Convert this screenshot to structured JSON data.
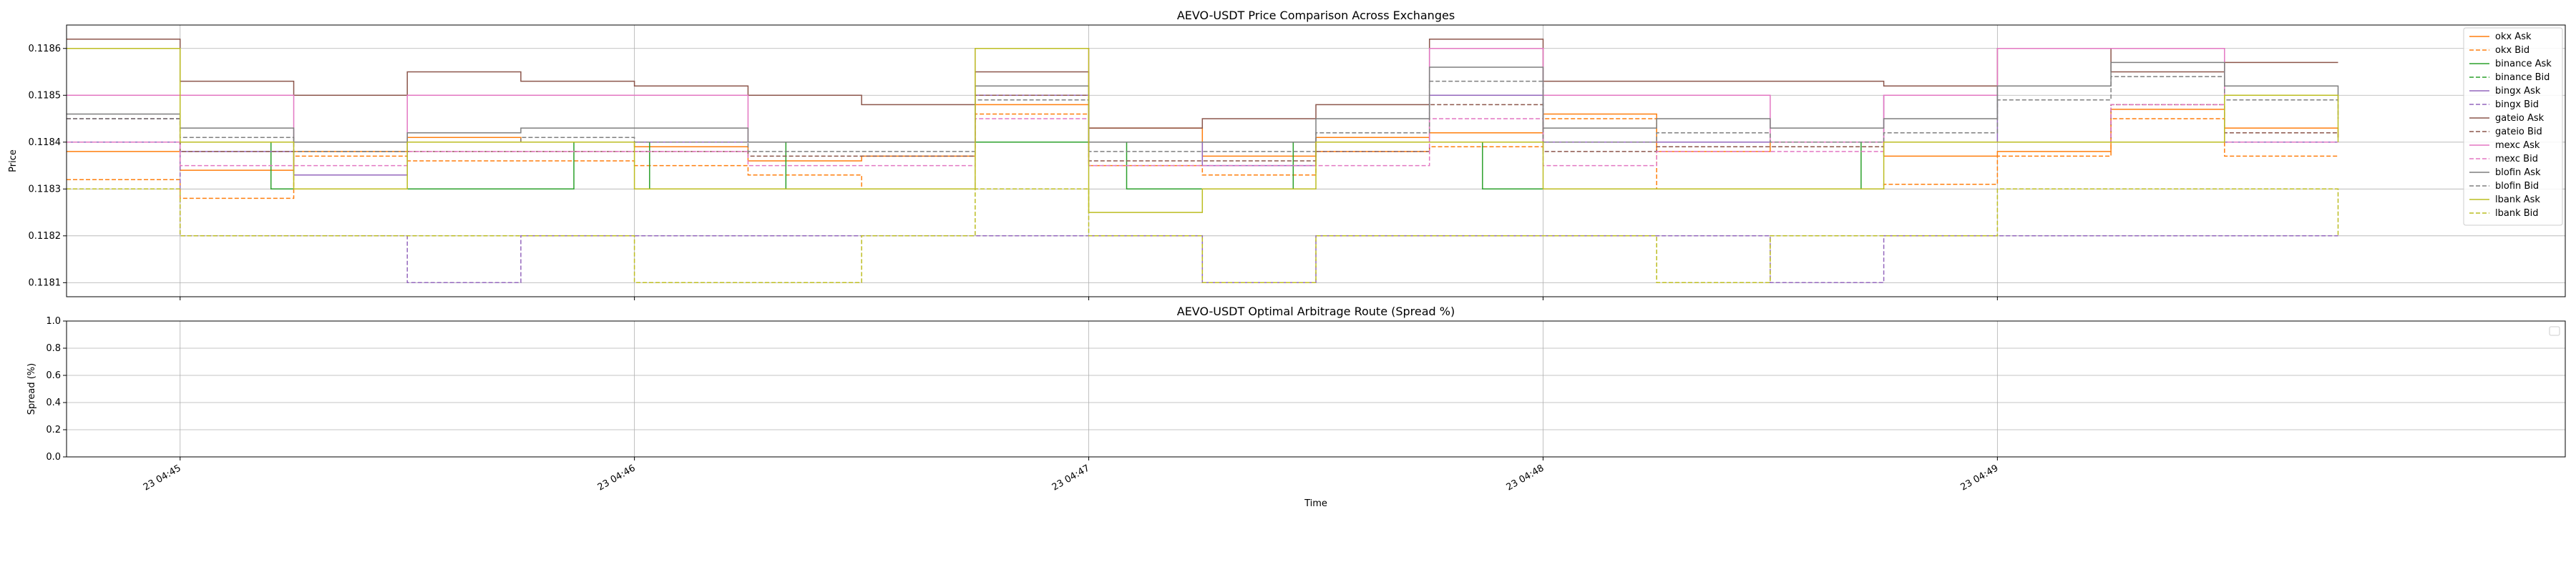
{
  "figure": {
    "x_tick_labels": [
      "23 04:45",
      "23 04:46",
      "23 04:47",
      "23 04:48",
      "23 04:49"
    ],
    "xlabel": "Time"
  },
  "chart_data": [
    {
      "type": "line",
      "title": "AEVO-USDT Price Comparison Across Exchanges",
      "xlabel": "",
      "ylabel": "Price",
      "x_range": [
        "04:44:45",
        "04:50:15"
      ],
      "ylim": [
        0.11807,
        0.11865
      ],
      "yticks": [
        0.1181,
        0.1182,
        0.1183,
        0.1184,
        0.1185,
        0.1186
      ],
      "ytick_labels": [
        "0.1181",
        "0.1182",
        "0.1183",
        "0.1184",
        "0.1185",
        "0.1186"
      ],
      "grid": true,
      "legend_position": "upper right",
      "series": [
        {
          "name": "okx Ask",
          "color": "#ff7f0e",
          "style": "solid",
          "x": [
            "04:44:45",
            "04:45:00",
            "04:45:15",
            "04:45:30",
            "04:45:45",
            "04:46:00",
            "04:46:15",
            "04:46:30",
            "04:46:45",
            "04:47:00",
            "04:47:15",
            "04:47:30",
            "04:47:45",
            "04:48:00",
            "04:48:15",
            "04:48:30",
            "04:48:45",
            "04:49:00",
            "04:49:15",
            "04:49:30",
            "04:49:45"
          ],
          "values": [
            0.11838,
            0.11834,
            0.11838,
            0.11841,
            0.1184,
            0.11839,
            0.11836,
            0.11837,
            0.11848,
            0.11843,
            0.11837,
            0.11841,
            0.11842,
            0.11846,
            0.11838,
            0.1184,
            0.11837,
            0.11838,
            0.11847,
            0.11843,
            0.11841
          ]
        },
        {
          "name": "okx Bid",
          "color": "#ff7f0e",
          "style": "dashed",
          "x": [
            "04:44:45",
            "04:45:00",
            "04:45:15",
            "04:45:30",
            "04:45:45",
            "04:46:00",
            "04:46:15",
            "04:46:30",
            "04:46:45",
            "04:47:00",
            "04:47:15",
            "04:47:30",
            "04:47:45",
            "04:48:00",
            "04:48:15",
            "04:48:30",
            "04:48:45",
            "04:49:00",
            "04:49:15",
            "04:49:30",
            "04:49:45"
          ],
          "values": [
            0.11832,
            0.11828,
            0.11837,
            0.11836,
            0.11836,
            0.11835,
            0.11833,
            0.1183,
            0.11846,
            0.11835,
            0.11833,
            0.11838,
            0.11839,
            0.11845,
            0.1183,
            0.1183,
            0.11831,
            0.11837,
            0.11845,
            0.11837,
            0.11837
          ]
        },
        {
          "name": "binance Ask",
          "color": "#2ca02c",
          "style": "solid",
          "x": [
            "04:44:45",
            "04:45:10",
            "04:45:12",
            "04:45:50",
            "04:45:52",
            "04:46:00",
            "04:46:02",
            "04:46:18",
            "04:46:20",
            "04:47:00",
            "04:47:05",
            "04:47:25",
            "04:47:27",
            "04:47:50",
            "04:47:52",
            "04:48:00",
            "04:48:02",
            "04:48:40",
            "04:48:42",
            "04:49:00",
            "04:49:02",
            "04:49:45"
          ],
          "values": [
            0.1184,
            0.1184,
            0.1183,
            0.1183,
            0.1184,
            0.1184,
            0.1183,
            0.1183,
            0.1184,
            0.1184,
            0.1183,
            0.1183,
            0.1184,
            0.1184,
            0.1183,
            0.1183,
            0.1183,
            0.1183,
            0.1184,
            0.1184,
            0.1184,
            0.1184
          ]
        },
        {
          "name": "binance Bid",
          "color": "#2ca02c",
          "style": "dashed",
          "x": [
            "04:44:45",
            "04:45:30",
            "04:46:00",
            "04:46:30",
            "04:47:00",
            "04:47:30",
            "04:48:00",
            "04:48:30",
            "04:49:00",
            "04:49:45"
          ],
          "values": [
            0.1184,
            0.1184,
            0.1184,
            0.1184,
            0.1184,
            0.1184,
            0.1184,
            0.1184,
            0.1184,
            0.1184
          ]
        },
        {
          "name": "bingx Ask",
          "color": "#9467bd",
          "style": "solid",
          "x": [
            "04:44:45",
            "04:45:00",
            "04:45:15",
            "04:45:30",
            "04:45:45",
            "04:46:00",
            "04:46:15",
            "04:46:30",
            "04:46:45",
            "04:47:00",
            "04:47:15",
            "04:47:30",
            "04:47:45",
            "04:48:00",
            "04:48:15",
            "04:48:30",
            "04:48:45",
            "04:49:00",
            "04:49:15",
            "04:49:30",
            "04:49:45"
          ],
          "values": [
            0.1184,
            0.11838,
            0.11833,
            0.1184,
            0.1184,
            0.1184,
            0.1184,
            0.1184,
            0.1185,
            0.1184,
            0.11835,
            0.1184,
            0.1185,
            0.1184,
            0.1184,
            0.1184,
            0.1185,
            0.1184,
            0.1184,
            0.1184,
            0.1184
          ]
        },
        {
          "name": "bingx Bid",
          "color": "#9467bd",
          "style": "dashed",
          "x": [
            "04:44:45",
            "04:45:00",
            "04:45:15",
            "04:45:30",
            "04:45:45",
            "04:46:00",
            "04:46:15",
            "04:46:30",
            "04:46:45",
            "04:47:00",
            "04:47:15",
            "04:47:30",
            "04:47:45",
            "04:48:00",
            "04:48:15",
            "04:48:30",
            "04:48:45",
            "04:49:00",
            "04:49:15",
            "04:49:30",
            "04:49:45"
          ],
          "values": [
            0.11845,
            0.1182,
            0.1182,
            0.1181,
            0.1182,
            0.1182,
            0.1182,
            0.1182,
            0.1182,
            0.1182,
            0.1181,
            0.1182,
            0.1182,
            0.1182,
            0.1182,
            0.1181,
            0.1182,
            0.1182,
            0.1182,
            0.1182,
            0.1182
          ]
        },
        {
          "name": "gateio Ask",
          "color": "#8c564b",
          "style": "solid",
          "x": [
            "04:44:45",
            "04:45:00",
            "04:45:15",
            "04:45:30",
            "04:45:45",
            "04:46:00",
            "04:46:15",
            "04:46:30",
            "04:46:45",
            "04:47:00",
            "04:47:15",
            "04:47:30",
            "04:47:45",
            "04:48:00",
            "04:48:15",
            "04:48:30",
            "04:48:45",
            "04:49:00",
            "04:49:15",
            "04:49:30",
            "04:49:45"
          ],
          "values": [
            0.11862,
            0.11853,
            0.1185,
            0.11855,
            0.11853,
            0.11852,
            0.1185,
            0.11848,
            0.11855,
            0.11843,
            0.11845,
            0.11848,
            0.11862,
            0.11853,
            0.11853,
            0.11853,
            0.11852,
            0.1186,
            0.11855,
            0.11857,
            0.11857
          ]
        },
        {
          "name": "gateio Bid",
          "color": "#8c564b",
          "style": "dashed",
          "x": [
            "04:44:45",
            "04:45:00",
            "04:45:15",
            "04:45:30",
            "04:45:45",
            "04:46:00",
            "04:46:15",
            "04:46:30",
            "04:46:45",
            "04:47:00",
            "04:47:15",
            "04:47:30",
            "04:47:45",
            "04:48:00",
            "04:48:15",
            "04:48:30",
            "04:48:45",
            "04:49:00",
            "04:49:15",
            "04:49:30",
            "04:49:45"
          ],
          "values": [
            0.11845,
            0.11838,
            0.11838,
            0.11838,
            0.11838,
            0.11838,
            0.11837,
            0.11837,
            0.1185,
            0.11836,
            0.11836,
            0.11838,
            0.11848,
            0.11838,
            0.11839,
            0.11839,
            0.1184,
            0.1184,
            0.11848,
            0.11842,
            0.11841
          ]
        },
        {
          "name": "mexc Ask",
          "color": "#e377c2",
          "style": "solid",
          "x": [
            "04:44:45",
            "04:45:00",
            "04:45:15",
            "04:45:30",
            "04:45:45",
            "04:46:00",
            "04:46:15",
            "04:46:30",
            "04:46:45",
            "04:47:00",
            "04:47:15",
            "04:47:30",
            "04:47:45",
            "04:48:00",
            "04:48:15",
            "04:48:30",
            "04:48:45",
            "04:49:00",
            "04:49:15",
            "04:49:30",
            "04:49:45"
          ],
          "values": [
            0.1185,
            0.1185,
            0.1184,
            0.1185,
            0.1185,
            0.1185,
            0.1184,
            0.1184,
            0.1186,
            0.1184,
            0.1184,
            0.1184,
            0.1186,
            0.1185,
            0.1185,
            0.1184,
            0.1185,
            0.1186,
            0.1186,
            0.1185,
            0.1185
          ]
        },
        {
          "name": "mexc Bid",
          "color": "#e377c2",
          "style": "dashed",
          "x": [
            "04:44:45",
            "04:45:00",
            "04:45:15",
            "04:45:30",
            "04:45:45",
            "04:46:00",
            "04:46:15",
            "04:46:30",
            "04:46:45",
            "04:47:00",
            "04:47:15",
            "04:47:30",
            "04:47:45",
            "04:48:00",
            "04:48:15",
            "04:48:30",
            "04:48:45",
            "04:49:00",
            "04:49:15",
            "04:49:30",
            "04:49:45"
          ],
          "values": [
            0.1184,
            0.11835,
            0.11835,
            0.11838,
            0.11838,
            0.11838,
            0.11835,
            0.11835,
            0.11845,
            0.11835,
            0.11835,
            0.11835,
            0.11845,
            0.11835,
            0.11838,
            0.11838,
            0.1184,
            0.1184,
            0.11848,
            0.1184,
            0.1184
          ]
        },
        {
          "name": "blofin Ask",
          "color": "#7f7f7f",
          "style": "solid",
          "x": [
            "04:44:45",
            "04:45:00",
            "04:45:15",
            "04:45:30",
            "04:45:45",
            "04:46:00",
            "04:46:15",
            "04:46:30",
            "04:46:45",
            "04:47:00",
            "04:47:15",
            "04:47:30",
            "04:47:45",
            "04:48:00",
            "04:48:15",
            "04:48:30",
            "04:48:45",
            "04:49:00",
            "04:49:15",
            "04:49:30",
            "04:49:45"
          ],
          "values": [
            0.11846,
            0.11843,
            0.1184,
            0.11842,
            0.11843,
            0.11843,
            0.1184,
            0.1184,
            0.11852,
            0.1184,
            0.1184,
            0.11845,
            0.11856,
            0.11843,
            0.11845,
            0.11843,
            0.11845,
            0.11852,
            0.11857,
            0.11852,
            0.11849
          ]
        },
        {
          "name": "blofin Bid",
          "color": "#7f7f7f",
          "style": "dashed",
          "x": [
            "04:44:45",
            "04:45:00",
            "04:45:15",
            "04:45:30",
            "04:45:45",
            "04:46:00",
            "04:46:15",
            "04:46:30",
            "04:46:45",
            "04:47:00",
            "04:47:15",
            "04:47:30",
            "04:47:45",
            "04:48:00",
            "04:48:15",
            "04:48:30",
            "04:48:45",
            "04:49:00",
            "04:49:15",
            "04:49:30",
            "04:49:45"
          ],
          "values": [
            0.11845,
            0.11841,
            0.11838,
            0.1184,
            0.11841,
            0.1184,
            0.11838,
            0.11838,
            0.11849,
            0.11838,
            0.11838,
            0.11842,
            0.11853,
            0.1184,
            0.11842,
            0.1184,
            0.11842,
            0.11849,
            0.11854,
            0.11849,
            0.11845
          ]
        },
        {
          "name": "lbank Ask",
          "color": "#bcbd22",
          "style": "solid",
          "x": [
            "04:44:45",
            "04:45:00",
            "04:45:15",
            "04:45:30",
            "04:45:45",
            "04:46:00",
            "04:46:15",
            "04:46:30",
            "04:46:45",
            "04:47:00",
            "04:47:15",
            "04:47:30",
            "04:47:45",
            "04:48:00",
            "04:48:15",
            "04:48:30",
            "04:48:45",
            "04:49:00",
            "04:49:15",
            "04:49:30",
            "04:49:45"
          ],
          "values": [
            0.1186,
            0.1184,
            0.1183,
            0.1184,
            0.1184,
            0.1183,
            0.1183,
            0.1183,
            0.1186,
            0.11825,
            0.1183,
            0.1184,
            0.1184,
            0.1183,
            0.1183,
            0.1183,
            0.1184,
            0.1184,
            0.1184,
            0.1185,
            0.1184
          ]
        },
        {
          "name": "lbank Bid",
          "color": "#bcbd22",
          "style": "dashed",
          "x": [
            "04:44:45",
            "04:45:00",
            "04:45:15",
            "04:45:30",
            "04:45:45",
            "04:46:00",
            "04:46:15",
            "04:46:30",
            "04:46:45",
            "04:47:00",
            "04:47:15",
            "04:47:30",
            "04:47:45",
            "04:48:00",
            "04:48:15",
            "04:48:30",
            "04:48:45",
            "04:49:00",
            "04:49:15",
            "04:49:30",
            "04:49:45"
          ],
          "values": [
            0.1183,
            0.1182,
            0.1182,
            0.1182,
            0.1182,
            0.1181,
            0.1181,
            0.1182,
            0.1183,
            0.1182,
            0.1181,
            0.1182,
            0.1182,
            0.1182,
            0.1181,
            0.1182,
            0.1182,
            0.1183,
            0.1183,
            0.1183,
            0.1182
          ]
        }
      ]
    },
    {
      "type": "line",
      "title": "AEVO-USDT Optimal Arbitrage Route (Spread %)",
      "xlabel": "Time",
      "ylabel": "Spread (%)",
      "ylim": [
        0.0,
        1.0
      ],
      "yticks": [
        0.0,
        0.2,
        0.4,
        0.6,
        0.8,
        1.0
      ],
      "ytick_labels": [
        "0.0",
        "0.2",
        "0.4",
        "0.6",
        "0.8",
        "1.0"
      ],
      "grid": true,
      "legend_position": "upper right",
      "series": []
    }
  ]
}
